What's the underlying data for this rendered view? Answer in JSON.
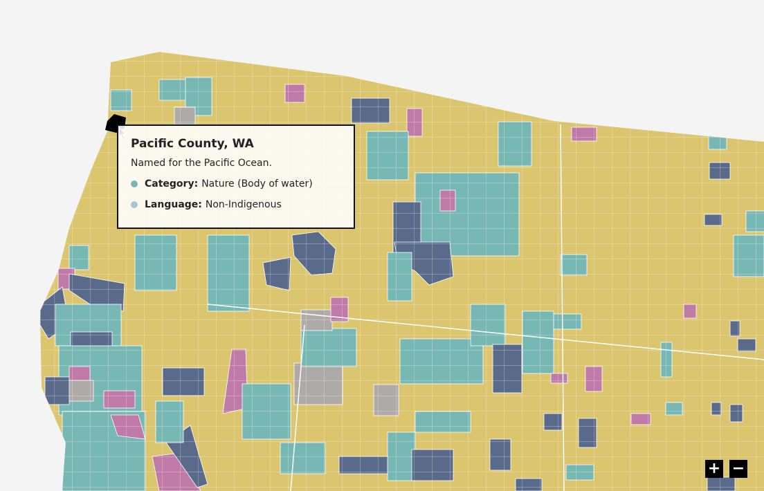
{
  "tooltip": {
    "title": "Pacific County, WA",
    "description": "Named for the Pacific Ocean.",
    "fields": [
      {
        "label": "Category:",
        "value": "Nature (Body of water)"
      },
      {
        "label": "Language:",
        "value": "Non-Indigenous"
      }
    ]
  },
  "controls": {
    "zoom_in": "+",
    "zoom_out": "−"
  }
}
